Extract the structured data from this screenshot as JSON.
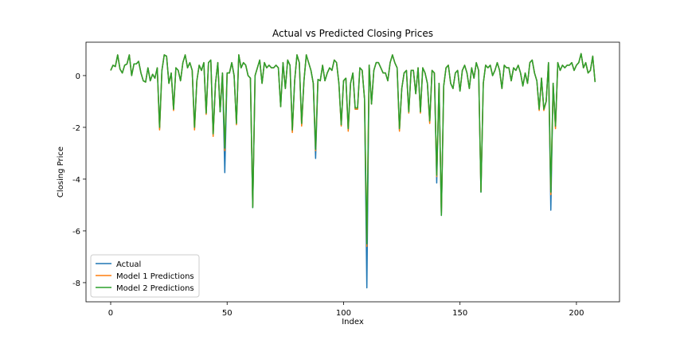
{
  "chart_data": {
    "type": "line",
    "title": "Actual vs Predicted Closing Prices",
    "x_label": "Index",
    "y_label": "Closing Price",
    "x": [
      0,
      1,
      2,
      3,
      4,
      5,
      6,
      7,
      8,
      9,
      10,
      11,
      12,
      13,
      14,
      15,
      16,
      17,
      18,
      19,
      20,
      21,
      22,
      23,
      24,
      25,
      26,
      27,
      28,
      29,
      30,
      31,
      32,
      33,
      34,
      35,
      36,
      37,
      38,
      39,
      40,
      41,
      42,
      43,
      44,
      45,
      46,
      47,
      48,
      49,
      50,
      51,
      52,
      53,
      54,
      55,
      56,
      57,
      58,
      59,
      60,
      61,
      62,
      63,
      64,
      65,
      66,
      67,
      68,
      69,
      70,
      71,
      72,
      73,
      74,
      75,
      76,
      77,
      78,
      79,
      80,
      81,
      82,
      83,
      84,
      85,
      86,
      87,
      88,
      89,
      90,
      91,
      92,
      93,
      94,
      95,
      96,
      97,
      98,
      99,
      100,
      101,
      102,
      103,
      104,
      105,
      106,
      107,
      108,
      109,
      110,
      111,
      112,
      113,
      114,
      115,
      116,
      117,
      118,
      119,
      120,
      121,
      122,
      123,
      124,
      125,
      126,
      127,
      128,
      129,
      130,
      131,
      132,
      133,
      134,
      135,
      136,
      137,
      138,
      139,
      140,
      141,
      142,
      143,
      144,
      145,
      146,
      147,
      148,
      149,
      150,
      151,
      152,
      153,
      154,
      155,
      156,
      157,
      158,
      159,
      160,
      161,
      162,
      163,
      164,
      165,
      166,
      167,
      168,
      169,
      170,
      171,
      172,
      173,
      174,
      175,
      176,
      177,
      178,
      179,
      180,
      181,
      182,
      183,
      184,
      185,
      186,
      187,
      188,
      189,
      190,
      191,
      192,
      193,
      194,
      195,
      196,
      197,
      198,
      199,
      200,
      201,
      202,
      203,
      204,
      205,
      206,
      207,
      208
    ],
    "series": [
      {
        "name": "Actual",
        "color": "#1f77b4",
        "values": [
          0.2,
          0.4,
          0.35,
          0.8,
          0.25,
          0.1,
          0.4,
          0.45,
          0.8,
          0.0,
          0.45,
          0.45,
          0.55,
          0.1,
          -0.2,
          -0.25,
          0.3,
          -0.2,
          0.05,
          -0.1,
          0.3,
          -2.05,
          0.2,
          0.8,
          0.75,
          -0.3,
          0.1,
          -1.3,
          0.3,
          0.2,
          -0.2,
          0.5,
          0.8,
          0.3,
          0.5,
          0.2,
          -2.05,
          -0.2,
          0.4,
          0.2,
          0.5,
          -1.45,
          0.5,
          0.6,
          -2.3,
          -0.3,
          0.5,
          -1.4,
          0.1,
          -3.75,
          0.1,
          0.1,
          0.5,
          0.0,
          -1.85,
          0.8,
          0.3,
          0.5,
          0.4,
          0.0,
          -0.1,
          -5.1,
          0.0,
          0.3,
          0.6,
          -0.3,
          0.5,
          0.3,
          0.4,
          0.3,
          0.3,
          0.4,
          0.3,
          -1.2,
          0.5,
          -0.5,
          0.6,
          0.4,
          -2.15,
          -0.2,
          0.8,
          0.5,
          -1.9,
          -0.2,
          0.8,
          0.5,
          0.2,
          -0.3,
          -3.2,
          -0.15,
          -0.2,
          0.4,
          -0.2,
          0.1,
          0.3,
          0.2,
          0.6,
          0.5,
          -0.3,
          -1.9,
          -0.2,
          -0.1,
          -2.1,
          -0.3,
          0.1,
          -1.3,
          -1.3,
          0.3,
          0.2,
          -0.9,
          -8.2,
          0.4,
          -1.1,
          0.2,
          0.5,
          0.5,
          0.3,
          0.1,
          0.1,
          -0.2,
          0.5,
          0.8,
          0.5,
          0.3,
          -2.1,
          -0.5,
          0.1,
          0.2,
          -1.4,
          0.2,
          0.2,
          -0.7,
          0.3,
          -1.4,
          0.3,
          0.1,
          -0.3,
          -1.8,
          0.2,
          0.1,
          -4.15,
          -0.3,
          -5.4,
          -0.4,
          0.3,
          0.4,
          -0.3,
          -0.5,
          0.1,
          0.2,
          -0.6,
          0.2,
          0.4,
          0.1,
          -0.5,
          0.3,
          -0.1,
          0.5,
          0.2,
          -4.5,
          -0.3,
          0.4,
          0.3,
          0.4,
          0.0,
          0.2,
          0.5,
          0.2,
          -0.5,
          0.4,
          0.3,
          0.3,
          -0.2,
          0.3,
          0.2,
          0.4,
          0.1,
          -0.4,
          0.1,
          -0.3,
          0.5,
          0.6,
          0.1,
          -0.2,
          -1.3,
          -0.1,
          -1.3,
          -1.0,
          0.5,
          -5.2,
          -0.3,
          -2.0,
          0.5,
          0.2,
          0.4,
          0.3,
          0.4,
          0.4,
          0.5,
          0.2,
          0.4,
          0.5,
          0.85,
          0.3,
          0.5,
          0.1,
          0.2,
          0.75,
          -0.25
        ]
      },
      {
        "name": "Model 1 Predictions",
        "color": "#ff7f0e",
        "values": [
          0.2,
          0.4,
          0.35,
          0.8,
          0.25,
          0.1,
          0.4,
          0.45,
          0.8,
          0.0,
          0.45,
          0.45,
          0.55,
          0.1,
          -0.2,
          -0.25,
          0.3,
          -0.2,
          0.05,
          -0.1,
          0.3,
          -2.1,
          0.2,
          0.8,
          0.75,
          -0.3,
          0.1,
          -1.35,
          0.3,
          0.2,
          -0.2,
          0.5,
          0.8,
          0.3,
          0.5,
          0.2,
          -2.1,
          -0.2,
          0.4,
          0.2,
          0.5,
          -1.5,
          0.5,
          0.6,
          -2.35,
          -0.3,
          0.5,
          -1.4,
          0.1,
          -2.9,
          0.1,
          0.1,
          0.5,
          0.0,
          -1.9,
          0.8,
          0.3,
          0.5,
          0.4,
          0.0,
          -0.1,
          -5.05,
          0.0,
          0.3,
          0.6,
          -0.3,
          0.5,
          0.3,
          0.4,
          0.3,
          0.3,
          0.4,
          0.3,
          -1.2,
          0.5,
          -0.5,
          0.6,
          0.4,
          -2.2,
          -0.2,
          0.8,
          0.5,
          -1.95,
          -0.2,
          0.8,
          0.5,
          0.2,
          -0.3,
          -2.9,
          -0.15,
          -0.2,
          0.4,
          -0.2,
          0.1,
          0.3,
          0.2,
          0.6,
          0.5,
          -0.3,
          -1.95,
          -0.2,
          -0.1,
          -2.15,
          -0.3,
          0.1,
          -1.3,
          -1.3,
          0.3,
          0.2,
          -0.9,
          -6.6,
          0.4,
          -1.1,
          0.2,
          0.5,
          0.5,
          0.3,
          0.1,
          0.1,
          -0.2,
          0.5,
          0.8,
          0.5,
          0.3,
          -2.15,
          -0.5,
          0.1,
          0.2,
          -1.45,
          0.2,
          0.2,
          -0.7,
          0.3,
          -1.45,
          0.3,
          0.1,
          -0.3,
          -1.85,
          0.2,
          0.1,
          -3.9,
          -0.3,
          -5.35,
          -0.4,
          0.3,
          0.4,
          -0.3,
          -0.5,
          0.1,
          0.2,
          -0.6,
          0.2,
          0.4,
          0.1,
          -0.5,
          0.3,
          -0.1,
          0.5,
          0.2,
          -4.45,
          -0.3,
          0.4,
          0.3,
          0.4,
          0.0,
          0.2,
          0.5,
          0.2,
          -0.5,
          0.4,
          0.3,
          0.3,
          -0.2,
          0.3,
          0.2,
          0.4,
          0.1,
          -0.4,
          0.1,
          -0.3,
          0.5,
          0.6,
          0.1,
          -0.2,
          -1.35,
          -0.1,
          -1.35,
          -1.0,
          0.5,
          -4.6,
          -0.3,
          -2.05,
          0.5,
          0.2,
          0.4,
          0.3,
          0.4,
          0.4,
          0.5,
          0.2,
          0.4,
          0.5,
          0.85,
          0.3,
          0.5,
          0.1,
          0.2,
          0.75,
          -0.25
        ]
      },
      {
        "name": "Model 2 Predictions",
        "color": "#2ca02c",
        "values": [
          0.2,
          0.4,
          0.35,
          0.8,
          0.25,
          0.1,
          0.4,
          0.45,
          0.8,
          0.0,
          0.45,
          0.45,
          0.55,
          0.1,
          -0.2,
          -0.25,
          0.3,
          -0.2,
          0.05,
          -0.1,
          0.3,
          -2.0,
          0.2,
          0.8,
          0.75,
          -0.3,
          0.1,
          -1.3,
          0.3,
          0.2,
          -0.2,
          0.5,
          0.8,
          0.3,
          0.5,
          0.2,
          -2.0,
          -0.2,
          0.4,
          0.2,
          0.5,
          -1.45,
          0.5,
          0.6,
          -2.25,
          -0.3,
          0.5,
          -1.4,
          0.1,
          -2.8,
          0.1,
          0.1,
          0.5,
          0.0,
          -1.85,
          0.8,
          0.3,
          0.5,
          0.4,
          0.0,
          -0.1,
          -5.1,
          0.0,
          0.3,
          0.6,
          -0.3,
          0.5,
          0.3,
          0.4,
          0.3,
          0.3,
          0.4,
          0.3,
          -1.2,
          0.5,
          -0.5,
          0.6,
          0.4,
          -2.1,
          -0.2,
          0.8,
          0.5,
          -1.85,
          -0.2,
          0.8,
          0.5,
          0.2,
          -0.3,
          -2.85,
          -0.15,
          -0.2,
          0.4,
          -0.2,
          0.1,
          0.3,
          0.2,
          0.6,
          0.5,
          -0.3,
          -1.9,
          -0.2,
          -0.1,
          -2.05,
          -0.3,
          0.1,
          -1.25,
          -1.25,
          0.3,
          0.2,
          -0.9,
          -6.5,
          0.4,
          -1.1,
          0.2,
          0.5,
          0.5,
          0.3,
          0.1,
          0.1,
          -0.2,
          0.5,
          0.8,
          0.5,
          0.3,
          -2.05,
          -0.5,
          0.1,
          0.2,
          -1.4,
          0.2,
          0.2,
          -0.7,
          0.3,
          -1.4,
          0.3,
          0.1,
          -0.3,
          -1.75,
          0.2,
          0.1,
          -3.85,
          -0.3,
          -5.4,
          -0.4,
          0.3,
          0.4,
          -0.3,
          -0.5,
          0.1,
          0.2,
          -0.6,
          0.2,
          0.4,
          0.1,
          -0.5,
          0.3,
          -0.1,
          0.5,
          0.2,
          -4.5,
          -0.3,
          0.4,
          0.3,
          0.4,
          0.0,
          0.2,
          0.5,
          0.2,
          -0.5,
          0.4,
          0.3,
          0.3,
          -0.2,
          0.3,
          0.2,
          0.4,
          0.1,
          -0.4,
          0.1,
          -0.3,
          0.5,
          0.6,
          0.1,
          -0.2,
          -1.3,
          -0.1,
          -1.3,
          -1.0,
          0.5,
          -4.5,
          -0.3,
          -1.95,
          0.5,
          0.2,
          0.4,
          0.3,
          0.4,
          0.4,
          0.5,
          0.2,
          0.4,
          0.5,
          0.85,
          0.3,
          0.5,
          0.1,
          0.2,
          0.75,
          -0.25
        ]
      }
    ],
    "xlim": [
      -10.6,
      218.5
    ],
    "ylim": [
      -8.74,
      1.29
    ],
    "xticks": [
      0,
      50,
      100,
      150,
      200
    ],
    "yticks": [
      -8,
      -6,
      -4,
      -2,
      0
    ],
    "grid": false,
    "legend": "lower left"
  }
}
